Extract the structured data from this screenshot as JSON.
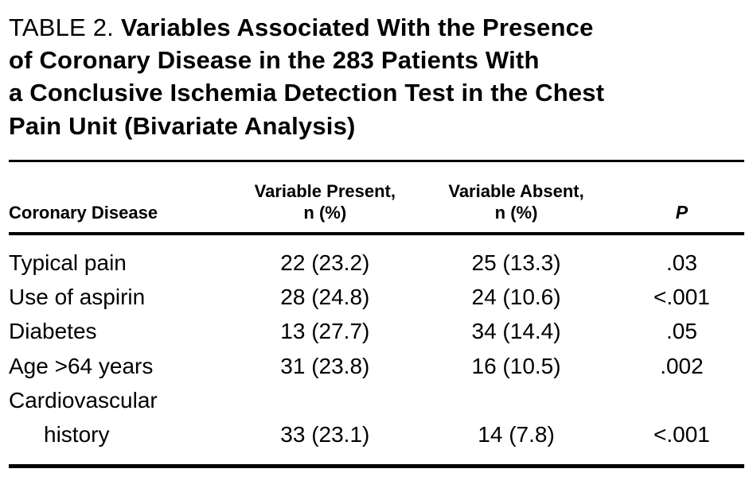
{
  "table": {
    "label": "TABLE 2.",
    "title_lines": [
      "Variables Associated With the Presence",
      "of Coronary Disease in the 283 Patients With",
      "a Conclusive Ischemia Detection Test in the Chest",
      "Pain Unit (Bivariate Analysis)"
    ],
    "header": {
      "col1": "Coronary Disease",
      "col2_line1": "Variable Present,",
      "col2_line2": "n (%)",
      "col3_line1": "Variable Absent,",
      "col3_line2": "n (%)",
      "col4": "P"
    },
    "rows": [
      {
        "variable": "Typical pain",
        "present": "22 (23.2)",
        "absent": "25 (13.3)",
        "p": ".03"
      },
      {
        "variable": "Use of aspirin",
        "present": "28 (24.8)",
        "absent": "24 (10.6)",
        "p": "<.001"
      },
      {
        "variable": "Diabetes",
        "present": "13 (27.7)",
        "absent": "34 (14.4)",
        "p": ".05"
      },
      {
        "variable": "Age >64 years",
        "present": "31 (23.8)",
        "absent": "16 (10.5)",
        "p": ".002"
      },
      {
        "variable_line1": "Cardiovascular",
        "variable_line2": "history",
        "present": "33 (23.1)",
        "absent": "14 (7.8)",
        "p": "<.001"
      }
    ],
    "colors": {
      "text": "#000000",
      "background": "#ffffff",
      "rule": "#000000"
    }
  }
}
